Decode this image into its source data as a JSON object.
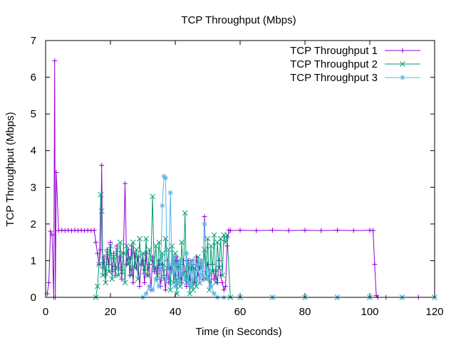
{
  "chart_data": {
    "type": "line",
    "title": "TCP Throughput (Mbps)",
    "xlabel": "Time (in Seconds)",
    "ylabel": "TCP Throughput (Mbps)",
    "xlim": [
      0,
      120
    ],
    "ylim": [
      0,
      7
    ],
    "xticks": [
      0,
      20,
      40,
      60,
      80,
      100,
      120
    ],
    "yticks": [
      0,
      1,
      2,
      3,
      4,
      5,
      6,
      7
    ],
    "grid": false,
    "legend_position": "top-right",
    "series": [
      {
        "name": "TCP Throughput 1",
        "color": "#9400D3",
        "marker": "plus",
        "x": [
          0.5,
          1.0,
          1.5,
          2.0,
          2.5,
          2.8,
          3.0,
          3.3,
          4,
          5,
          6,
          7,
          8,
          9,
          10,
          11,
          12,
          13,
          14,
          15,
          15.5,
          16,
          16.5,
          17,
          17.3,
          17.6,
          18,
          18.5,
          19,
          19.5,
          20,
          20.5,
          21,
          21.5,
          22,
          22.5,
          23,
          23.5,
          24,
          24.5,
          25,
          25.5,
          26,
          26.5,
          27,
          27.5,
          28,
          28.5,
          29,
          29.5,
          30,
          30.5,
          31,
          31.5,
          32,
          32.5,
          33,
          33.5,
          34,
          34.5,
          35,
          35.5,
          36,
          36.5,
          37,
          37.5,
          38,
          38.5,
          39,
          39.5,
          40,
          40.5,
          41,
          41.5,
          42,
          42.5,
          43,
          43.5,
          44,
          44.5,
          45,
          45.5,
          46,
          46.5,
          47,
          47.5,
          48,
          48.5,
          49,
          49.5,
          50,
          50.5,
          51,
          51.5,
          52,
          52.5,
          53,
          53.5,
          54,
          54.5,
          55,
          55.5,
          56,
          56.5,
          57,
          60,
          65,
          70,
          75,
          80,
          85,
          90,
          95,
          100,
          101,
          101.5,
          102,
          102.5,
          105,
          110,
          115,
          120
        ],
        "y": [
          0.1,
          0.4,
          1.8,
          1.7,
          0.0,
          6.45,
          0.0,
          3.4,
          1.82,
          1.83,
          1.82,
          1.83,
          1.82,
          1.83,
          1.82,
          1.83,
          1.82,
          1.83,
          1.82,
          1.83,
          1.5,
          1.2,
          0.9,
          1.3,
          3.6,
          0.8,
          1.1,
          0.6,
          1.3,
          0.9,
          1.5,
          0.7,
          1.2,
          0.6,
          1.4,
          0.8,
          1.1,
          0.5,
          1.2,
          3.1,
          0.9,
          1.3,
          0.6,
          1.4,
          0.4,
          1.2,
          0.8,
          1.1,
          0.3,
          0.9,
          1.0,
          0.4,
          1.2,
          0.6,
          0.9,
          0.2,
          1.1,
          0.7,
          0.8,
          0.5,
          1.0,
          0.3,
          0.9,
          0.6,
          0.2,
          1.0,
          0.4,
          0.8,
          0.7,
          1.0,
          0.5,
          1.1,
          0.6,
          0.9,
          0.4,
          1.0,
          0.7,
          0.3,
          1.0,
          0.5,
          0.8,
          0.9,
          0.4,
          1.1,
          0.6,
          0.8,
          1.0,
          0.5,
          2.2,
          0.7,
          0.9,
          0.6,
          0.3,
          0.9,
          0.5,
          0.7,
          0.4,
          1.0,
          0.6,
          0.4,
          0.2,
          0.3,
          1.4,
          1.83,
          1.82,
          1.83,
          1.82,
          1.83,
          1.82,
          1.83,
          1.82,
          1.83,
          1.82,
          1.83,
          1.82,
          0.9,
          0.05,
          0.0,
          0.0,
          0.0,
          0.0,
          0.0
        ]
      },
      {
        "name": "TCP Throughput 2",
        "color": "#009E73",
        "marker": "cross",
        "x": [
          15.5,
          16,
          16.5,
          17,
          17.3,
          17.6,
          18,
          18.5,
          19,
          19.5,
          20,
          20.5,
          21,
          21.5,
          22,
          22.5,
          23,
          23.5,
          24,
          24.5,
          25,
          25.5,
          26,
          26.5,
          27,
          27.5,
          28,
          28.5,
          29,
          29.5,
          30,
          30.5,
          31,
          31.5,
          32,
          32.5,
          33,
          33.5,
          34,
          34.5,
          35,
          35.5,
          36,
          36.5,
          37,
          37.5,
          38,
          38.5,
          39,
          39.5,
          40,
          40.5,
          41,
          41.5,
          42,
          42.5,
          43,
          43.5,
          44,
          44.5,
          45,
          45.5,
          46,
          46.5,
          47,
          47.5,
          48,
          48.5,
          49,
          49.5,
          50,
          50.5,
          51,
          51.5,
          52,
          52.5,
          53,
          53.5,
          54,
          54.5,
          55,
          55.5,
          56,
          57,
          60,
          70,
          80,
          90,
          100,
          110,
          120
        ],
        "y": [
          0.0,
          0.3,
          0.9,
          2.8,
          2.35,
          0.6,
          1.0,
          0.4,
          1.2,
          0.7,
          1.4,
          0.5,
          1.1,
          0.8,
          1.3,
          0.6,
          1.5,
          0.7,
          1.2,
          0.4,
          1.4,
          0.9,
          1.1,
          0.6,
          1.5,
          0.8,
          1.3,
          0.5,
          1.6,
          0.9,
          1.2,
          0.7,
          1.6,
          0.6,
          1.3,
          1.0,
          2.75,
          0.8,
          1.4,
          0.6,
          1.5,
          0.9,
          1.2,
          0.5,
          1.6,
          0.8,
          1.3,
          0.2,
          1.4,
          0.4,
          1.2,
          0.1,
          1.0,
          0.3,
          1.5,
          0.6,
          2.3,
          0.4,
          0.9,
          0.1,
          1.0,
          0.2,
          0.8,
          0.3,
          1.1,
          0.4,
          0.9,
          0.6,
          1.3,
          0.5,
          1.6,
          0.2,
          1.4,
          0.7,
          1.7,
          0.4,
          1.5,
          0.8,
          1.6,
          0.6,
          1.7,
          1.5,
          1.7,
          0.0,
          0.0,
          0.0,
          0.0,
          0.0,
          0.0,
          0.0,
          0.0
        ]
      },
      {
        "name": "TCP Throughput 3",
        "color": "#56B4E9",
        "marker": "star",
        "x": [
          30,
          31,
          32,
          33,
          34,
          35,
          35.5,
          36,
          36.5,
          37,
          37.5,
          38,
          38.5,
          39,
          39.5,
          40,
          40.5,
          41,
          41.5,
          42,
          42.5,
          43,
          43.5,
          44,
          44.5,
          45,
          45.5,
          46,
          46.5,
          47,
          47.5,
          48,
          48.5,
          49,
          49.5,
          50,
          50.5,
          51,
          52,
          53,
          55,
          60,
          70,
          80,
          90,
          100,
          110,
          120
        ],
        "y": [
          0.0,
          0.1,
          0.3,
          0.2,
          0.5,
          0.3,
          0.8,
          2.5,
          3.3,
          3.25,
          0.5,
          0.9,
          2.85,
          0.7,
          1.1,
          0.3,
          0.9,
          0.4,
          1.0,
          0.6,
          0.8,
          0.5,
          1.2,
          0.4,
          0.9,
          0.3,
          1.0,
          0.7,
          0.5,
          0.9,
          0.4,
          1.0,
          0.6,
          2.0,
          0.8,
          0.5,
          0.7,
          0.3,
          0.1,
          0.0,
          0.0,
          0.0,
          0.0,
          0.0,
          0.0,
          0.0,
          0.0,
          0.0
        ]
      }
    ]
  }
}
